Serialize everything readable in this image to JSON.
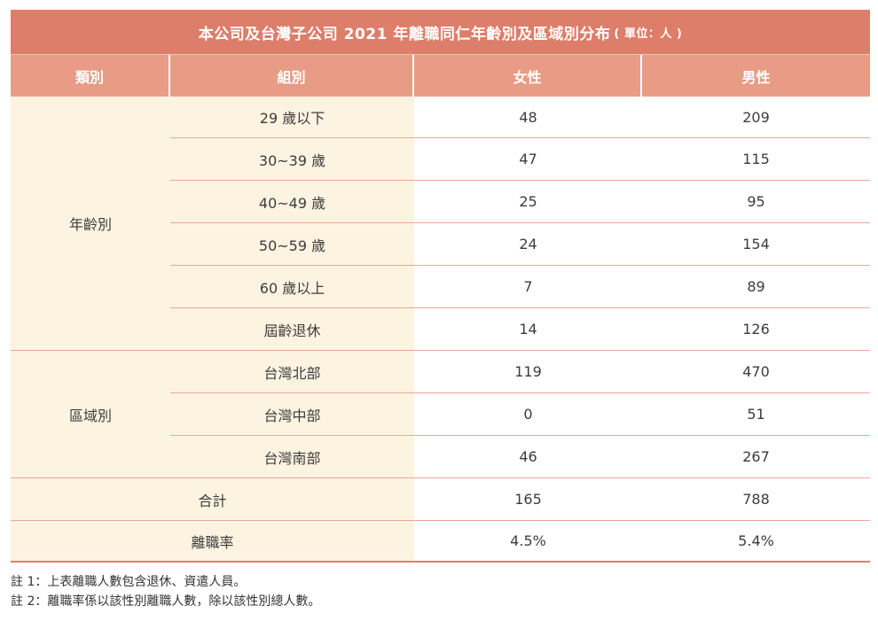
{
  "title": {
    "main": "本公司及台灣子公司 2021 年離職同仁年齡別及區域別分布",
    "unit": "( 單位：人 )"
  },
  "header": {
    "col1": "類別",
    "col2": "組別",
    "col3": "女性",
    "col4": "男性"
  },
  "age_category": "年齡別",
  "age_rows": [
    {
      "group": "29 歲以下",
      "female": "48",
      "male": "209"
    },
    {
      "group": "30~39 歲",
      "female": "47",
      "male": "115"
    },
    {
      "group": "40~49 歲",
      "female": "25",
      "male": "95"
    },
    {
      "group": "50~59 歲",
      "female": "24",
      "male": "154"
    },
    {
      "group": "60 歲以上",
      "female": "7",
      "male": "89"
    },
    {
      "group": "屆齡退休",
      "female": "14",
      "male": "126"
    }
  ],
  "region_category": "區域別",
  "region_rows": [
    {
      "group": "台灣北部",
      "female": "119",
      "male": "470"
    },
    {
      "group": "台灣中部",
      "female": "0",
      "male": "51"
    },
    {
      "group": "台灣南部",
      "female": "46",
      "male": "267"
    }
  ],
  "total": {
    "label": "合計",
    "female": "165",
    "male": "788"
  },
  "rate": {
    "label": "離職率",
    "female": "4.5%",
    "male": "5.4%"
  },
  "notes": [
    "註 1：上表離職人數包含退休、資遣人員。",
    "註 2：離職率係以該性別離職人數，除以該性別總人數。"
  ]
}
